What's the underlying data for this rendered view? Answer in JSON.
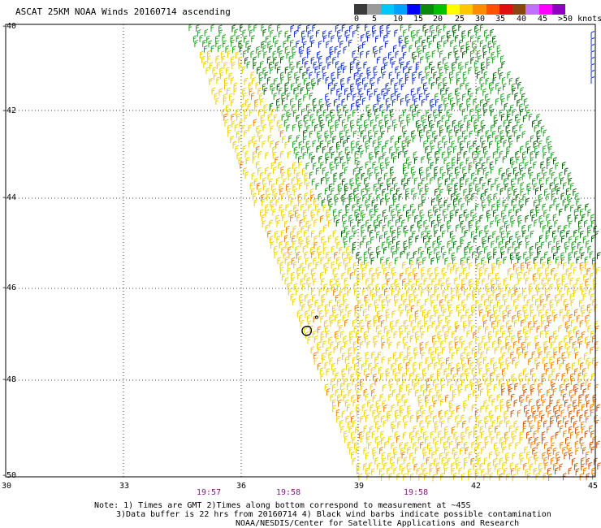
{
  "title": "ASCAT 25KM NOAA Winds 20160714 ascending",
  "colorbar": {
    "labels": [
      "0",
      "5",
      "10",
      "15",
      "20",
      "25",
      "30",
      "35",
      "40",
      "45",
      ">50 knots"
    ],
    "colors": [
      "#3a3a3a",
      "#9a9a9a",
      "#00c8ff",
      "#00a0ff",
      "#0000ff",
      "#0a8a0a",
      "#00c000",
      "#ffff00",
      "#ffc800",
      "#ff8c00",
      "#ff5000",
      "#e01010",
      "#8b4513",
      "#c070ff",
      "#ff00ff",
      "#9000c0"
    ]
  },
  "axes": {
    "latitudes": [
      "-40",
      "-42",
      "-44",
      "-46",
      "-48",
      "-50"
    ],
    "longitudes": [
      "30",
      "33",
      "36",
      "39",
      "42",
      "45"
    ]
  },
  "times": [
    "19:57",
    "19:58",
    "19:58"
  ],
  "notes": [
    "Note: 1) Times are GMT 2)Times along bottom correspond to measurement at ~45S",
    "3)Data buffer is 22 hrs from 20160714 4) Black wind barbs indicate possible contamination",
    "NOAA/NESDIS/Center for Satellite Applications and Research"
  ],
  "legend_colors": {
    "calm_blue": "#1030d0",
    "dark_green": "#006400",
    "green": "#22a022",
    "yellow": "#f0d000",
    "orange": "#f08000",
    "dark_orange": "#c85000"
  }
}
